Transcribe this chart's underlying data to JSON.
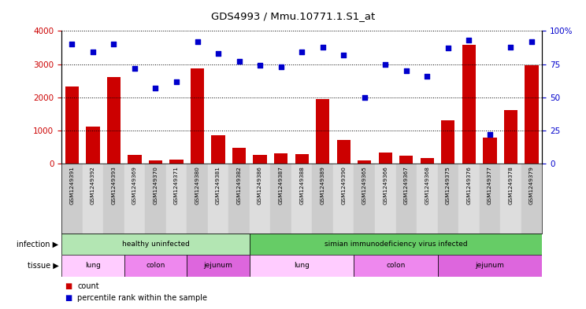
{
  "title": "GDS4993 / Mmu.10771.1.S1_at",
  "samples": [
    "GSM1249391",
    "GSM1249392",
    "GSM1249393",
    "GSM1249369",
    "GSM1249370",
    "GSM1249371",
    "GSM1249380",
    "GSM1249381",
    "GSM1249382",
    "GSM1249386",
    "GSM1249387",
    "GSM1249388",
    "GSM1249389",
    "GSM1249390",
    "GSM1249365",
    "GSM1249366",
    "GSM1249367",
    "GSM1249368",
    "GSM1249375",
    "GSM1249376",
    "GSM1249377",
    "GSM1249378",
    "GSM1249379"
  ],
  "counts": [
    2320,
    1120,
    2620,
    270,
    100,
    120,
    2880,
    870,
    490,
    270,
    310,
    290,
    1940,
    720,
    90,
    330,
    250,
    170,
    1300,
    3590,
    790,
    1620,
    2960
  ],
  "percentiles": [
    90,
    84,
    90,
    72,
    57,
    62,
    92,
    83,
    77,
    74,
    73,
    84,
    88,
    82,
    50,
    75,
    70,
    66,
    87,
    93,
    22,
    88,
    92
  ],
  "bar_color": "#cc0000",
  "dot_color": "#0000cc",
  "ylim_left": [
    0,
    4000
  ],
  "ylim_right": [
    0,
    100
  ],
  "yticks_left": [
    0,
    1000,
    2000,
    3000,
    4000
  ],
  "yticks_right": [
    0,
    25,
    50,
    75,
    100
  ],
  "infection_groups": [
    {
      "label": "healthy uninfected",
      "start": 0,
      "end": 9,
      "color": "#b3e6b3"
    },
    {
      "label": "simian immunodeficiency virus infected",
      "start": 9,
      "end": 23,
      "color": "#66cc66"
    }
  ],
  "tissue_groups": [
    {
      "label": "lung",
      "start": 0,
      "end": 3,
      "color": "#ffccff"
    },
    {
      "label": "colon",
      "start": 3,
      "end": 6,
      "color": "#ee88ee"
    },
    {
      "label": "jejunum",
      "start": 6,
      "end": 9,
      "color": "#dd66dd"
    },
    {
      "label": "lung",
      "start": 9,
      "end": 14,
      "color": "#ffccff"
    },
    {
      "label": "colon",
      "start": 14,
      "end": 18,
      "color": "#ee88ee"
    },
    {
      "label": "jejunum",
      "start": 18,
      "end": 23,
      "color": "#dd66dd"
    }
  ],
  "bg_color": "#ffffff",
  "plot_bg": "#ffffff",
  "infection_label": "infection",
  "tissue_label": "tissue",
  "legend_count_label": "count",
  "legend_pct_label": "percentile rank within the sample"
}
